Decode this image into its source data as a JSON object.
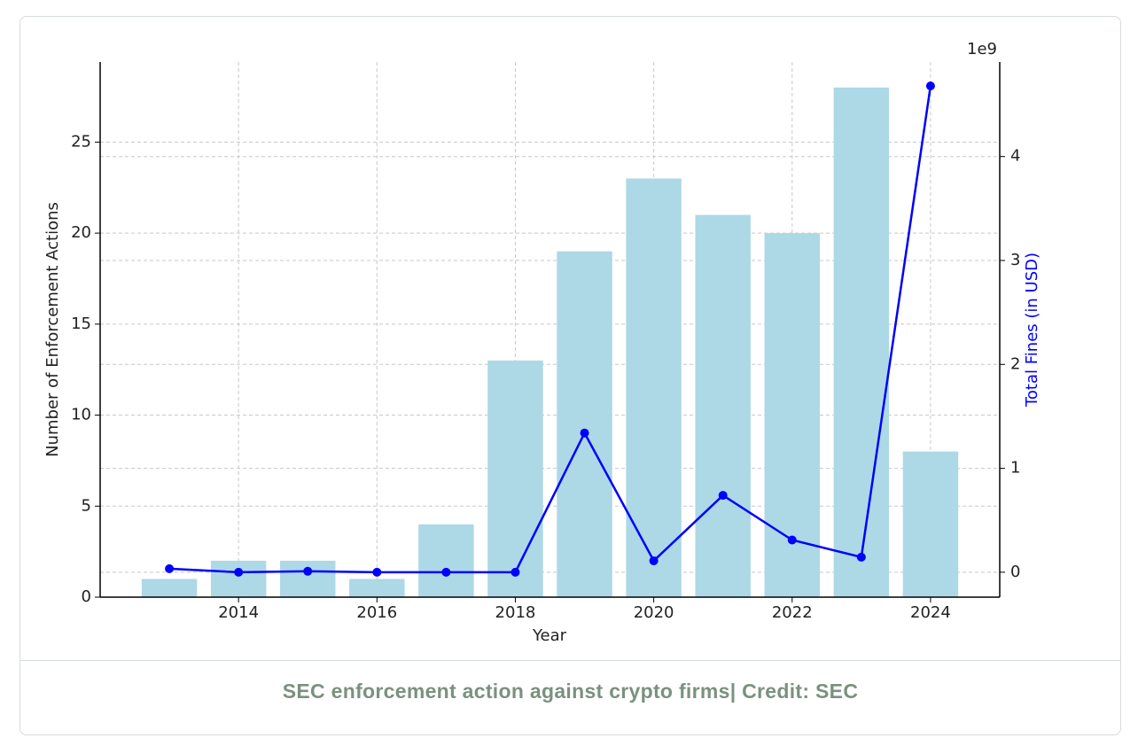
{
  "chart_data": {
    "type": "bar",
    "xlabel": "Year",
    "ylabel": "Number of Enforcement Actions",
    "y2label": "Total Fines (in USD)",
    "y2_offset_label": "1e9",
    "x": [
      2013,
      2014,
      2015,
      2016,
      2017,
      2018,
      2019,
      2020,
      2021,
      2022,
      2023,
      2024
    ],
    "series": [
      {
        "type": "bar",
        "color": "#add8e6",
        "values": [
          1,
          2,
          2,
          1,
          4,
          13,
          19,
          23,
          21,
          20,
          28,
          8
        ]
      },
      {
        "type": "line",
        "axis": "y2",
        "color": "#0000ff",
        "values": [
          0.034,
          0,
          0.009,
          0,
          0,
          0,
          1.34,
          0.11,
          0.74,
          0.31,
          0.145,
          4.68
        ]
      }
    ],
    "xlim": [
      2012,
      2025
    ],
    "xticks": [
      2014,
      2016,
      2018,
      2020,
      2022,
      2024
    ],
    "ylim": [
      0,
      29.4
    ],
    "yticks": [
      0,
      5,
      10,
      15,
      20,
      25
    ],
    "y2lim": [
      -0.24,
      4.91
    ],
    "y2ticks": [
      0,
      1,
      2,
      3,
      4
    ],
    "grid": true
  },
  "caption": "SEC enforcement action against crypto firms| Credit: SEC"
}
